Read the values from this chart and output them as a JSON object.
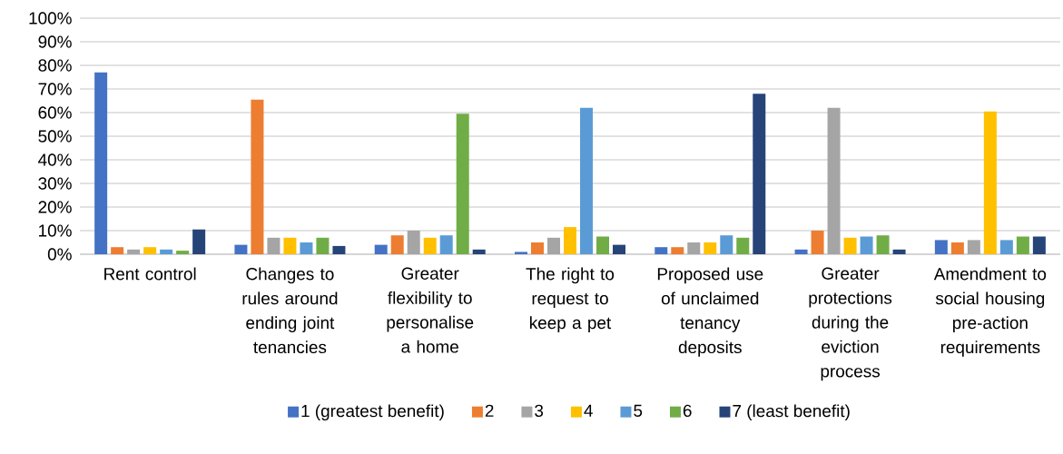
{
  "chart_data": {
    "type": "bar",
    "categories": [
      "Rent control",
      "Changes to rules around ending joint tenancies",
      "Greater flexibility to personalise a home",
      "The right to request to keep a pet",
      "Proposed use of unclaimed tenancy deposits",
      "Greater protections during the eviction process",
      "Amendment to social housing pre-action requirements"
    ],
    "series": [
      {
        "name": "1 (greatest benefit)",
        "color": "#4472c4",
        "values": [
          77,
          4,
          4,
          1,
          3,
          2,
          6
        ]
      },
      {
        "name": "2",
        "color": "#ed7d31",
        "values": [
          3,
          65.5,
          8,
          5,
          3,
          10,
          5
        ]
      },
      {
        "name": "3",
        "color": "#a5a5a5",
        "values": [
          2,
          7,
          10,
          7,
          5,
          62,
          6
        ]
      },
      {
        "name": "4",
        "color": "#ffc000",
        "values": [
          3,
          7,
          7,
          11.5,
          5,
          7,
          60.5
        ]
      },
      {
        "name": "5",
        "color": "#5b9bd5",
        "values": [
          2,
          5,
          8,
          62,
          8,
          7.5,
          6
        ]
      },
      {
        "name": "6",
        "color": "#70ad47",
        "values": [
          1.5,
          7,
          59.5,
          7.5,
          7,
          8,
          7.5
        ]
      },
      {
        "name": "7 (least benefit)",
        "color": "#264478",
        "values": [
          10.5,
          3.5,
          2,
          4,
          68,
          2,
          7.5
        ]
      }
    ],
    "ylim": [
      0,
      100
    ],
    "yticks": [
      {
        "value": 0,
        "label": "0%"
      },
      {
        "value": 10,
        "label": "10%"
      },
      {
        "value": 20,
        "label": "20%"
      },
      {
        "value": 30,
        "label": "30%"
      },
      {
        "value": 40,
        "label": "40%"
      },
      {
        "value": 50,
        "label": "50%"
      },
      {
        "value": 60,
        "label": "60%"
      },
      {
        "value": 70,
        "label": "70%"
      },
      {
        "value": 80,
        "label": "80%"
      },
      {
        "value": 90,
        "label": "90%"
      },
      {
        "value": 100,
        "label": "100%"
      }
    ],
    "grid": "y",
    "legend": "bottom"
  }
}
